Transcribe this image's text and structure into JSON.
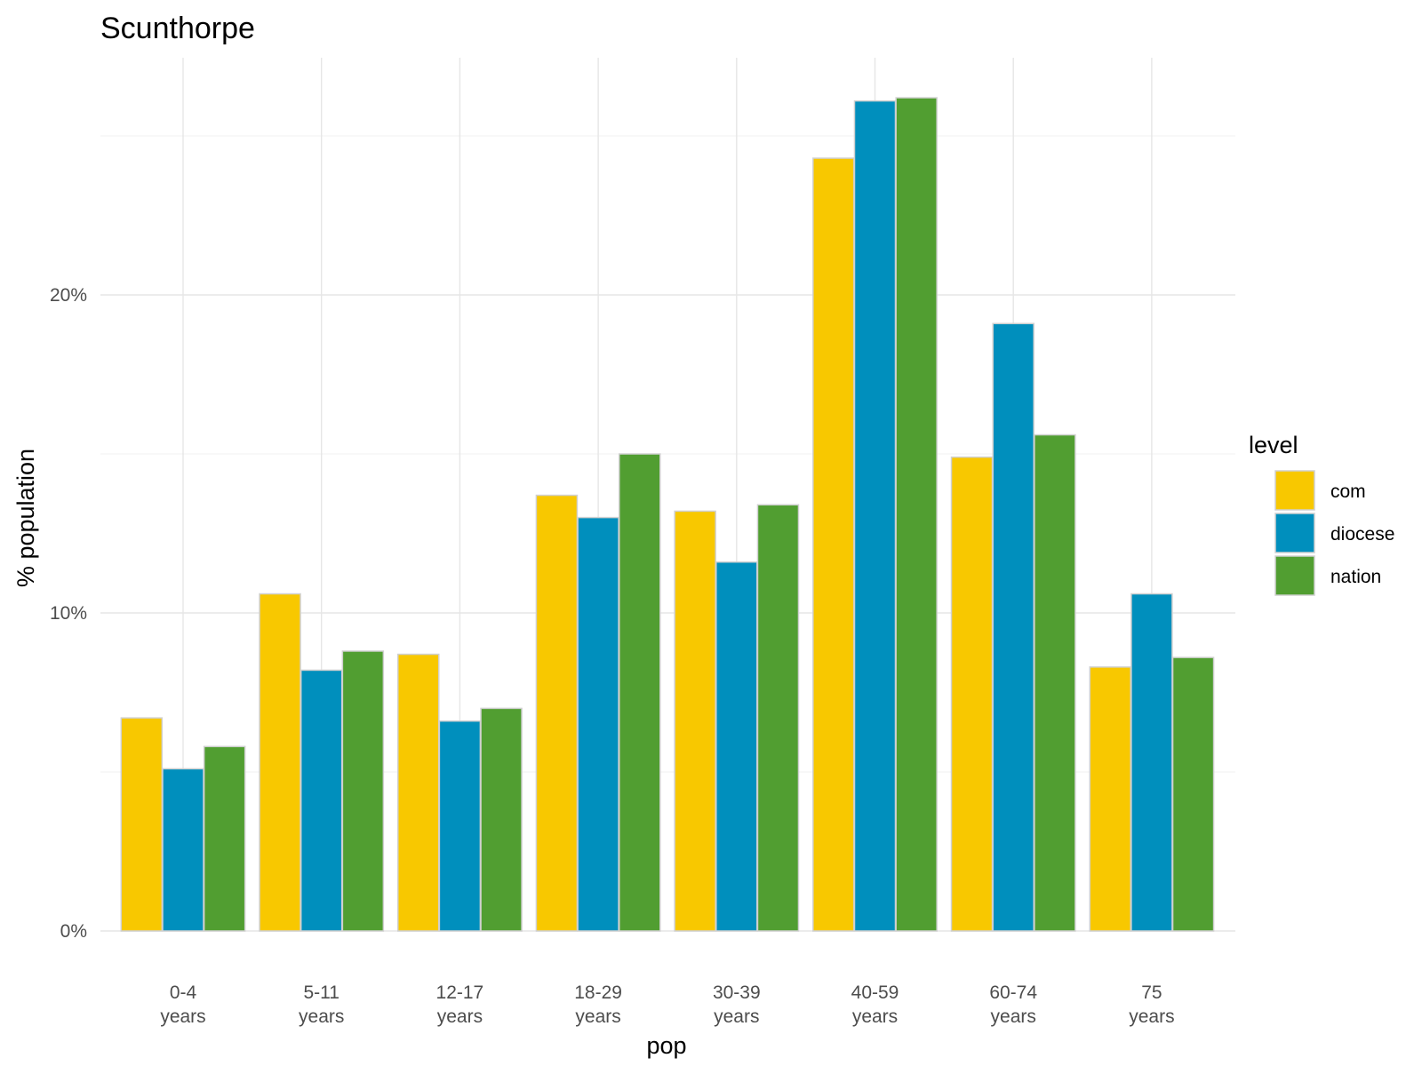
{
  "chart_data": {
    "type": "bar",
    "title": "Scunthorpe",
    "xlabel": "pop",
    "ylabel": "% population",
    "categories": [
      [
        "0-4",
        "years"
      ],
      [
        "5-11",
        "years"
      ],
      [
        "12-17",
        "years"
      ],
      [
        "18-29",
        "years"
      ],
      [
        "30-39",
        "years"
      ],
      [
        "40-59",
        "years"
      ],
      [
        "60-74",
        "years"
      ],
      [
        "75",
        "years"
      ]
    ],
    "series": [
      {
        "name": "com",
        "color": "#F8C800",
        "values": [
          6.7,
          10.6,
          8.7,
          13.7,
          13.2,
          24.3,
          14.9,
          8.3
        ]
      },
      {
        "name": "diocese",
        "color": "#008FBD",
        "values": [
          5.1,
          8.2,
          6.6,
          13.0,
          11.6,
          26.1,
          19.1,
          10.6
        ]
      },
      {
        "name": "nation",
        "color": "#519E31",
        "values": [
          5.8,
          8.8,
          7.0,
          15.0,
          13.4,
          26.2,
          15.6,
          8.6
        ]
      }
    ],
    "ylim": [
      0,
      27.5
    ],
    "yticks": [
      {
        "value": 0,
        "label": "0%"
      },
      {
        "value": 10,
        "label": "10%"
      },
      {
        "value": 20,
        "label": "20%"
      }
    ],
    "yminor": [
      5,
      15,
      25
    ],
    "grid": true,
    "legend": {
      "title": "level",
      "position": "right"
    }
  }
}
